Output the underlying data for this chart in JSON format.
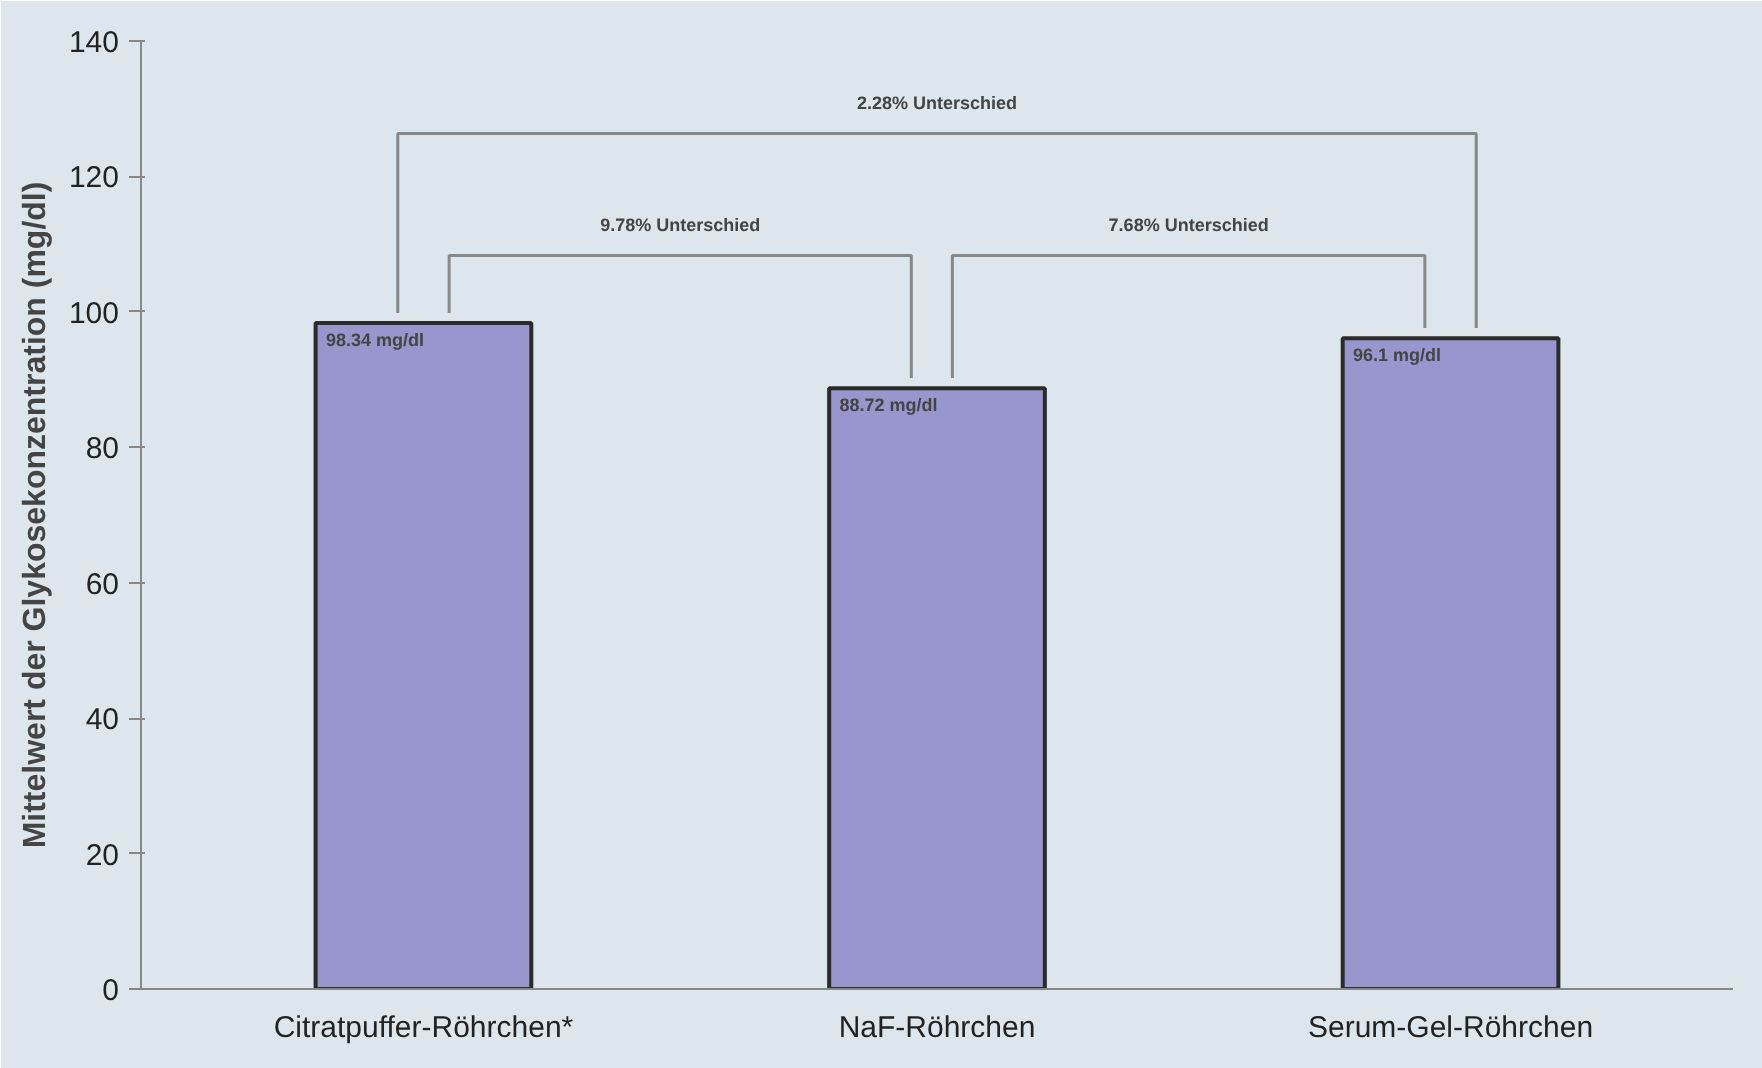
{
  "chart_data": {
    "type": "bar",
    "ylabel": "Mittelwert der Glykosekonzentration (mg/dl)",
    "categories": [
      "Citratpuffer-Röhrchen*",
      "NaF-Röhrchen",
      "Serum-Gel-Röhrchen"
    ],
    "values": [
      98.34,
      88.72,
      96.1
    ],
    "color": "#9896cc",
    "value_labels": [
      "98.34 mg/dl",
      "88.72 mg/dl",
      "96.1 mg/dl"
    ],
    "ylim": [
      0,
      140
    ],
    "yticks": [
      0,
      20,
      40,
      60,
      80,
      100,
      120,
      140
    ],
    "grid": false,
    "annotations": [
      "2.28% Unterschied",
      "9.78% Unterschied",
      "7.68% Unterschied"
    ]
  }
}
